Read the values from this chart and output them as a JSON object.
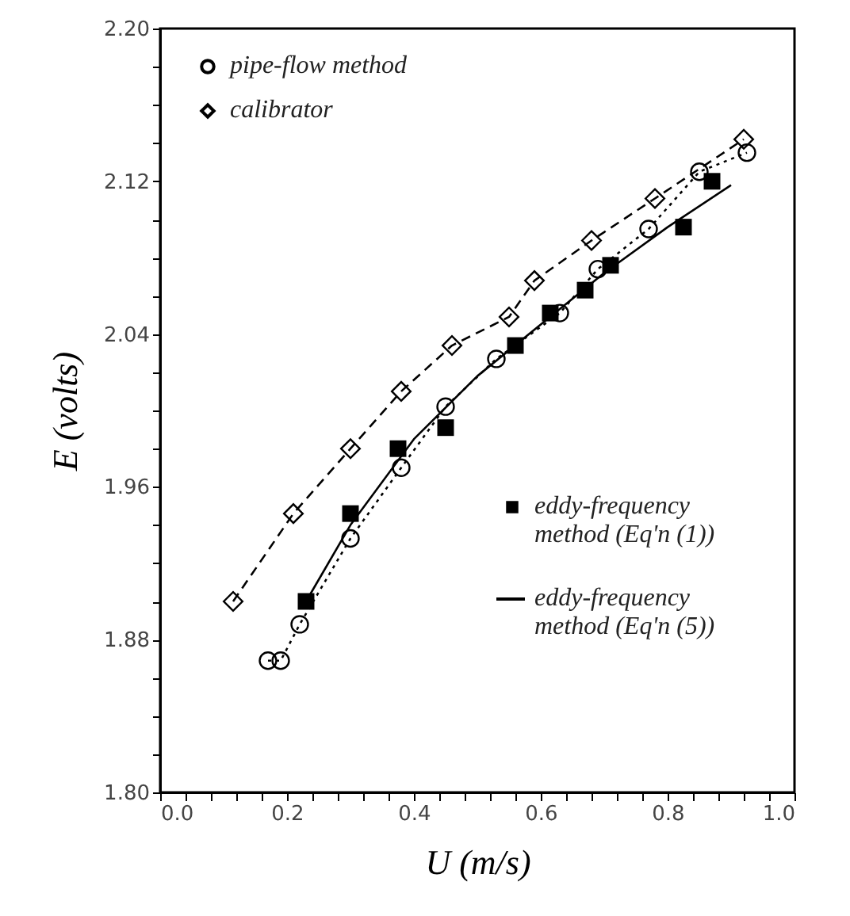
{
  "chart_data": {
    "type": "scatter",
    "xlabel": "U (m/s)",
    "ylabel": "E (volts)",
    "xlim": [
      0,
      1.0
    ],
    "ylim": [
      1.8,
      2.2
    ],
    "xticks": [
      {
        "value": 0,
        "label": "0.0"
      },
      {
        "value": 0.04,
        "label": null
      },
      {
        "value": 0.08,
        "label": null
      },
      {
        "value": 0.12,
        "label": null
      },
      {
        "value": 0.16,
        "label": null
      },
      {
        "value": 0.2,
        "label": "0.2"
      },
      {
        "value": 0.24,
        "label": null
      },
      {
        "value": 0.28,
        "label": null
      },
      {
        "value": 0.32,
        "label": null
      },
      {
        "value": 0.36,
        "label": null
      },
      {
        "value": 0.4,
        "label": "0.4"
      },
      {
        "value": 0.44,
        "label": null
      },
      {
        "value": 0.48,
        "label": null
      },
      {
        "value": 0.52,
        "label": null
      },
      {
        "value": 0.56,
        "label": null
      },
      {
        "value": 0.6,
        "label": "0.6"
      },
      {
        "value": 0.64,
        "label": null
      },
      {
        "value": 0.68,
        "label": null
      },
      {
        "value": 0.72,
        "label": null
      },
      {
        "value": 0.76,
        "label": null
      },
      {
        "value": 0.8,
        "label": "0.8"
      },
      {
        "value": 0.84,
        "label": null
      },
      {
        "value": 0.88,
        "label": null
      },
      {
        "value": 0.92,
        "label": null
      },
      {
        "value": 0.96,
        "label": null
      },
      {
        "value": 1.0,
        "label": "1.0"
      }
    ],
    "yticks": [
      {
        "value": 1.8,
        "label": "1.80"
      },
      {
        "value": 1.82,
        "label": null
      },
      {
        "value": 1.84,
        "label": null
      },
      {
        "value": 1.86,
        "label": null
      },
      {
        "value": 1.88,
        "label": "1.88"
      },
      {
        "value": 1.9,
        "label": null
      },
      {
        "value": 1.92,
        "label": null
      },
      {
        "value": 1.94,
        "label": null
      },
      {
        "value": 1.96,
        "label": "1.96"
      },
      {
        "value": 1.98,
        "label": null
      },
      {
        "value": 2.0,
        "label": null
      },
      {
        "value": 2.02,
        "label": null
      },
      {
        "value": 2.04,
        "label": "2.04"
      },
      {
        "value": 2.06,
        "label": null
      },
      {
        "value": 2.08,
        "label": null
      },
      {
        "value": 2.1,
        "label": null
      },
      {
        "value": 2.12,
        "label": "2.12"
      },
      {
        "value": 2.14,
        "label": null
      },
      {
        "value": 2.16,
        "label": null
      },
      {
        "value": 2.18,
        "label": null
      },
      {
        "value": 2.2,
        "label": "2.20"
      }
    ],
    "grid": false,
    "legend": "top left",
    "series": [
      {
        "name": "pipe-flow method",
        "type": "line",
        "marker": "circle",
        "line_style": "dotted",
        "color": "#000000",
        "x": [
          0.17,
          0.19,
          0.22,
          0.3,
          0.38,
          0.45,
          0.53,
          0.63,
          0.69,
          0.77,
          0.85,
          0.925
        ],
        "values": [
          1.869,
          1.869,
          1.888,
          1.933,
          1.97,
          2.002,
          2.027,
          2.051,
          2.074,
          2.095,
          2.125,
          2.135
        ]
      },
      {
        "name": "calibrator",
        "type": "line",
        "marker": "diamond",
        "line_style": "dashed",
        "color": "#000000",
        "x": [
          0.115,
          0.21,
          0.3,
          0.38,
          0.46,
          0.55,
          0.59,
          0.68,
          0.78,
          0.92
        ],
        "values": [
          1.9,
          1.946,
          1.98,
          2.01,
          2.034,
          2.049,
          2.068,
          2.089,
          2.111,
          2.142
        ]
      },
      {
        "name": "eddy-frequency\nmethod (Eq'n (1))",
        "type": "scatter",
        "marker": "square",
        "color": "#000000",
        "x": [
          0.23,
          0.3,
          0.375,
          0.45,
          0.56,
          0.615,
          0.67,
          0.71,
          0.825,
          0.87
        ],
        "values": [
          1.9,
          1.946,
          1.98,
          1.991,
          2.034,
          2.051,
          2.063,
          2.076,
          2.096,
          2.12
        ]
      },
      {
        "name": "eddy-frequency\nmethod (Eq'n (5))",
        "type": "line",
        "marker": "none",
        "line_style": "solid",
        "color": "#000000",
        "x": [
          0.23,
          0.3,
          0.4,
          0.5,
          0.6,
          0.7,
          0.8,
          0.9
        ],
        "values": [
          1.9,
          1.94,
          1.985,
          2.018,
          2.045,
          2.072,
          2.096,
          2.118
        ]
      }
    ]
  }
}
